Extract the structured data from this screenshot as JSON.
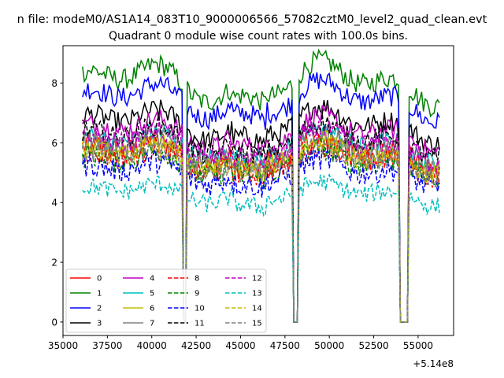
{
  "chart_data": {
    "type": "line",
    "suptitle": "n file: modeM0/AS1A14_083T10_9000006566_57082cztM0_level2_quad_clean.evt",
    "title": "Quadrant 0 module wise count rates with 100.0s bins.",
    "xlabel": "",
    "ylabel": "",
    "x_offset_label": "+5.14e8",
    "xlim": [
      35000,
      57000
    ],
    "ylim": [
      -0.45,
      9.25
    ],
    "xticks": [
      35000,
      37500,
      40000,
      42500,
      45000,
      47500,
      50000,
      52500,
      55000
    ],
    "xtick_labels": [
      "35000",
      "37500",
      "40000",
      "42500",
      "45000",
      "47500",
      "50000",
      "52500",
      "55000"
    ],
    "yticks": [
      0,
      2,
      4,
      6,
      8
    ],
    "ytick_labels": [
      "0",
      "2",
      "4",
      "6",
      "8"
    ],
    "grid": false,
    "legend_position": "lower-left",
    "legend_ncol": 4,
    "x_range": [
      36100,
      56200
    ],
    "bin_seconds": 100,
    "gaps": [
      {
        "from": 41750,
        "to": 41950
      },
      {
        "from": 47950,
        "to": 48200
      },
      {
        "from": 54000,
        "to": 54400
      }
    ],
    "series": [
      {
        "name": "0",
        "color": "#ff0000",
        "dashed": false,
        "level": 5.6,
        "noise": 0.45,
        "dip": 4.3
      },
      {
        "name": "1",
        "color": "#008000",
        "dashed": false,
        "level": 8.0,
        "noise": 0.35,
        "dip": 4.3
      },
      {
        "name": "2",
        "color": "#0000ff",
        "dashed": false,
        "level": 7.4,
        "noise": 0.35,
        "dip": 4.3
      },
      {
        "name": "3",
        "color": "#000000",
        "dashed": false,
        "level": 6.6,
        "noise": 0.35,
        "dip": 4.3
      },
      {
        "name": "4",
        "color": "#bf00bf",
        "dashed": false,
        "level": 6.3,
        "noise": 0.35,
        "dip": 4.3
      },
      {
        "name": "5",
        "color": "#00bfbf",
        "dashed": false,
        "level": 5.9,
        "noise": 0.35,
        "dip": 4.3
      },
      {
        "name": "6",
        "color": "#bfbf00",
        "dashed": false,
        "level": 5.6,
        "noise": 0.35,
        "dip": 4.3
      },
      {
        "name": "7",
        "color": "#808080",
        "dashed": false,
        "level": 5.8,
        "noise": 0.35,
        "dip": 4.3
      },
      {
        "name": "8",
        "color": "#ff0000",
        "dashed": true,
        "level": 5.4,
        "noise": 0.4,
        "dip": 4.3
      },
      {
        "name": "9",
        "color": "#008000",
        "dashed": true,
        "level": 5.3,
        "noise": 0.4,
        "dip": 4.3
      },
      {
        "name": "10",
        "color": "#0000ff",
        "dashed": true,
        "level": 5.0,
        "noise": 0.4,
        "dip": 4.3
      },
      {
        "name": "11",
        "color": "#000000",
        "dashed": true,
        "level": 6.1,
        "noise": 0.35,
        "dip": 4.3
      },
      {
        "name": "12",
        "color": "#bf00bf",
        "dashed": true,
        "level": 5.9,
        "noise": 0.35,
        "dip": 4.3
      },
      {
        "name": "13",
        "color": "#00bfbf",
        "dashed": true,
        "level": 4.3,
        "noise": 0.3,
        "dip": 4.3
      },
      {
        "name": "14",
        "color": "#bfbf00",
        "dashed": true,
        "level": 5.5,
        "noise": 0.35,
        "dip": 4.3
      },
      {
        "name": "15",
        "color": "#808080",
        "dashed": true,
        "level": 5.4,
        "noise": 0.35,
        "dip": 4.3
      }
    ]
  }
}
